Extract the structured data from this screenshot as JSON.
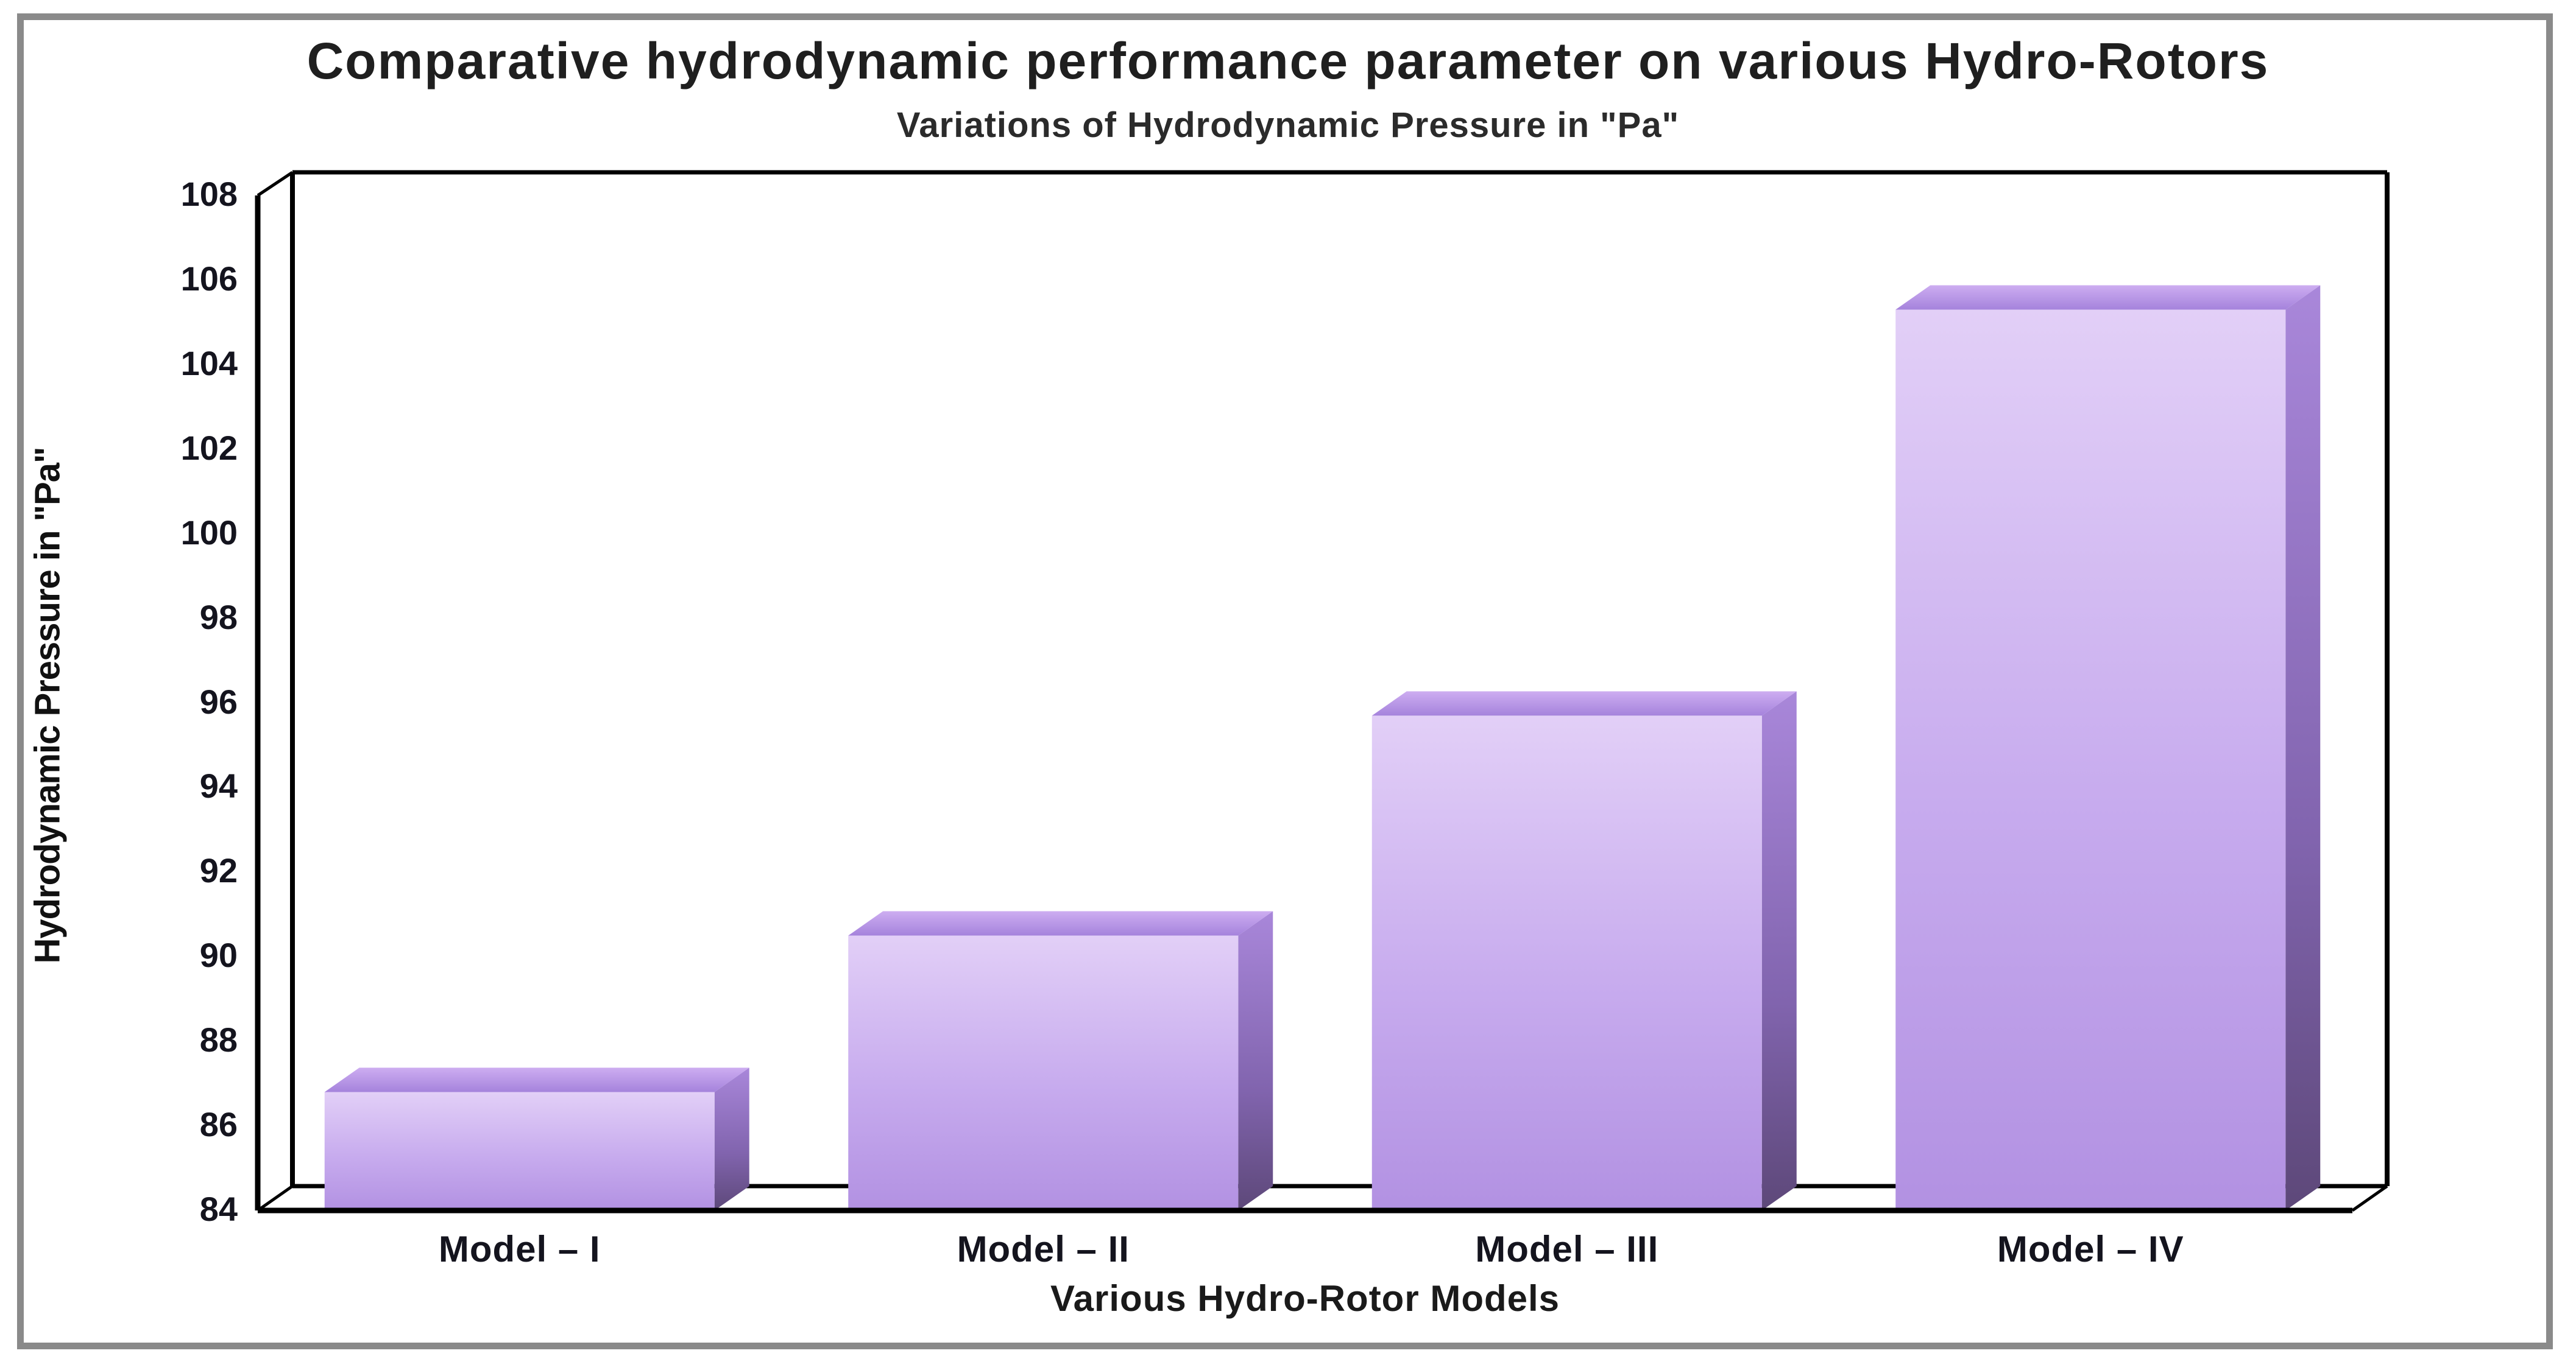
{
  "page": {
    "background": "#ffffff",
    "frame_border_color": "#8a8a8a"
  },
  "chart_data": {
    "type": "bar",
    "style": "3d-column",
    "title": "Comparative hydrodynamic performance parameter on various Hydro-Rotors",
    "subtitle": "Variations of Hydrodynamic Pressure in \"Pa\"",
    "xlabel": "Various Hydro-Rotor Models",
    "ylabel": "Hydrodynamic Pressure in \"Pa\"",
    "categories": [
      "Model – I",
      "Model – II",
      "Model – III",
      "Model – IV"
    ],
    "values": [
      86.8,
      90.5,
      95.7,
      105.3
    ],
    "ylim": [
      84,
      108
    ],
    "ytick_step": 2,
    "yticks": [
      84,
      86,
      88,
      90,
      92,
      94,
      96,
      98,
      100,
      102,
      104,
      106,
      108
    ],
    "grid": false,
    "legend": false,
    "axis_color": "#000000",
    "bar_colors": {
      "front_top": "#e2cff7",
      "front_mid": "#c7abee",
      "front_bottom": "#b291e2",
      "top_back": "#cdadf1",
      "top_front": "#a583dc",
      "side_top": "#a987da",
      "side_mid": "#8164ae",
      "side_bottom": "#5d4879"
    }
  }
}
